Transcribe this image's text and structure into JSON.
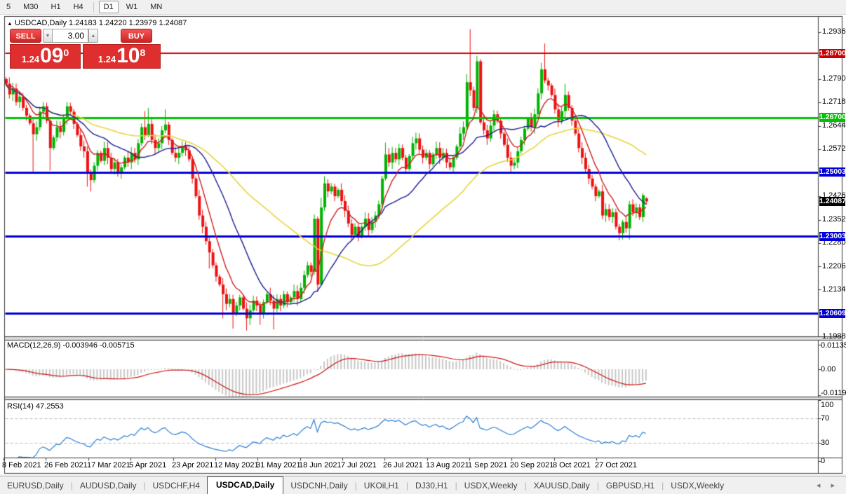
{
  "toolbar": {
    "timeframes": [
      "5",
      "M30",
      "H1",
      "H4",
      "D1",
      "W1",
      "MN"
    ],
    "active_timeframe": "D1",
    "separator_after": "H4"
  },
  "icons": {
    "collapse": "▲",
    "spin_down": "▼",
    "spin_up": "▲",
    "tab_prev": "◂",
    "tab_next": "▸"
  },
  "chart": {
    "title": "USDCAD,Daily 1.24183 1.24220 1.23979 1.24087",
    "symbol": "USDCAD",
    "period": "Daily"
  },
  "trade_panel": {
    "sell_label": "SELL",
    "buy_label": "BUY",
    "volume": "3.00",
    "sell_price_small": "1.24",
    "sell_price_big": "09",
    "sell_price_sup": "0",
    "buy_price_small": "1.24",
    "buy_price_big": "10",
    "buy_price_sup": "8"
  },
  "indicators": {
    "macd_label": "MACD(12,26,9) -0.003946 -0.005715",
    "rsi_label": "RSI(14) 47.2553"
  },
  "tabs": {
    "items": [
      "EURUSD,Daily",
      "AUDUSD,Daily",
      "USDCHF,H4",
      "USDCAD,Daily",
      "USDCNH,Daily",
      "UKOil,H1",
      "DJ30,H1",
      "USDX,Weekly",
      "XAUUSD,Daily",
      "GBPUSD,H1",
      "USDX,Weekly"
    ],
    "active_index": 3
  },
  "chart_data": {
    "type": "candlestick",
    "title": "USDCAD Daily",
    "ohlc_display": {
      "open": "1.24183",
      "high": "1.24220",
      "low": "1.23979",
      "close": "1.24087"
    },
    "y_axis_labels": [
      "1.29360",
      "1.28640",
      "1.27900",
      "1.27180",
      "1.26440",
      "1.25720",
      "1.24260",
      "1.23520",
      "1.22800",
      "1.22060",
      "1.21340",
      "1.19880"
    ],
    "h_lines": [
      {
        "price": 1.287,
        "label": "1.28700",
        "color": "#cc0000",
        "width": 2
      },
      {
        "price": 1.267,
        "label": "1.26700",
        "color": "#00c300",
        "width": 3
      },
      {
        "price": 1.25003,
        "label": "1.25003",
        "color": "#0000d6",
        "width": 3
      },
      {
        "price": 1.23003,
        "label": "1.23003",
        "color": "#0000d6",
        "width": 3
      },
      {
        "price": 1.20609,
        "label": "1.20609",
        "color": "#0000d6",
        "width": 3
      }
    ],
    "current_price": {
      "value": 1.24087,
      "label": "1.24087",
      "color": "#000000"
    },
    "x_axis_labels": [
      "8 Feb 2021",
      "26 Feb 2021",
      "17 Mar 2021",
      "5 Apr 2021",
      "23 Apr 2021",
      "12 May 2021",
      "31 May 2021",
      "18 Jun 2021",
      "7 Jul 2021",
      "26 Jul 2021",
      "13 Aug 2021",
      "1 Sep 2021",
      "20 Sep 2021",
      "8 Oct 2021",
      "27 Oct 2021"
    ],
    "macd": {
      "params": "12,26,9",
      "current_values": [
        -0.003946,
        -0.005715
      ],
      "axis_labels": [
        "0.01135",
        "0.00",
        "-0.01190"
      ],
      "range": [
        -0.0119,
        0.01135
      ]
    },
    "rsi": {
      "period": 14,
      "current_value": 47.2553,
      "axis_labels": [
        "100",
        "70",
        "30",
        "0"
      ],
      "levels": [
        70,
        30
      ],
      "range": [
        0,
        100
      ]
    },
    "candles": {
      "first_open": 1.279,
      "wick_base": 0.0016,
      "closes": [
        1.2775,
        1.2742,
        1.276,
        1.2718,
        1.2735,
        1.27,
        1.2676,
        1.2652,
        1.2618,
        1.264,
        1.2688,
        1.2705,
        1.266,
        1.2575,
        1.2608,
        1.264,
        1.2625,
        1.2665,
        1.2705,
        1.2688,
        1.265,
        1.2615,
        1.258,
        1.2565,
        1.2495,
        1.2475,
        1.252,
        1.256,
        1.2535,
        1.2575,
        1.2545,
        1.251,
        1.253,
        1.2495,
        1.2515,
        1.2545,
        1.253,
        1.256,
        1.254,
        1.259,
        1.264,
        1.2615,
        1.265,
        1.26,
        1.2575,
        1.259,
        1.263,
        1.2648,
        1.26,
        1.256,
        1.2545,
        1.256,
        1.258,
        1.2568,
        1.254,
        1.248,
        1.2425,
        1.2365,
        1.233,
        1.2285,
        1.225,
        1.221,
        1.2175,
        1.215,
        1.212,
        1.209,
        1.2105,
        1.206,
        1.2085,
        1.211,
        1.2075,
        1.2045,
        1.207,
        1.21,
        1.2085,
        1.206,
        1.2095,
        1.212,
        1.21,
        1.2075,
        1.2105,
        1.2085,
        1.212,
        1.2095,
        1.211,
        1.213,
        1.2105,
        1.214,
        1.218,
        1.221,
        1.219,
        1.2355,
        1.215,
        1.239,
        1.2465,
        1.244,
        1.2455,
        1.2425,
        1.2445,
        1.241,
        1.238,
        1.234,
        1.2305,
        1.233,
        1.23,
        1.233,
        1.2355,
        1.232,
        1.2345,
        1.2365,
        1.24,
        1.248,
        1.2555,
        1.253,
        1.256,
        1.254,
        1.2575,
        1.2545,
        1.251,
        1.255,
        1.259,
        1.2605,
        1.257,
        1.2545,
        1.256,
        1.2525,
        1.2555,
        1.2575,
        1.2545,
        1.256,
        1.253,
        1.2515,
        1.2545,
        1.258,
        1.262,
        1.264,
        1.278,
        1.2755,
        1.27,
        1.2845,
        1.2655,
        1.263,
        1.2605,
        1.2645,
        1.268,
        1.266,
        1.262,
        1.2585,
        1.2545,
        1.252,
        1.253,
        1.2565,
        1.26,
        1.2635,
        1.2665,
        1.264,
        1.268,
        1.2745,
        1.282,
        1.2785,
        1.277,
        1.274,
        1.2695,
        1.266,
        1.269,
        1.274,
        1.27,
        1.266,
        1.262,
        1.2575,
        1.2545,
        1.251,
        1.248,
        1.2455,
        1.2425,
        1.244,
        1.2365,
        1.2385,
        1.236,
        1.2375,
        1.233,
        1.231,
        1.2345,
        1.2325,
        1.24,
        1.2375,
        1.239,
        1.236,
        1.2428,
        1.24087
      ],
      "wick_overrides": [
        {
          "i": 8,
          "l": 1.2502
        },
        {
          "i": 13,
          "l": 1.2505
        },
        {
          "i": 24,
          "l": 1.2455
        },
        {
          "i": 25,
          "l": 1.244
        },
        {
          "i": 41,
          "h": 1.269
        },
        {
          "i": 42,
          "h": 1.27
        },
        {
          "i": 47,
          "h": 1.2695
        },
        {
          "i": 60,
          "l": 1.22
        },
        {
          "i": 64,
          "l": 1.2045
        },
        {
          "i": 67,
          "l": 1.2013
        },
        {
          "i": 71,
          "l": 1.2007
        },
        {
          "i": 75,
          "l": 1.2025
        },
        {
          "i": 79,
          "l": 1.201
        },
        {
          "i": 91,
          "h": 1.2368,
          "l": 1.218
        },
        {
          "i": 92,
          "h": 1.2362,
          "l": 1.2127
        },
        {
          "i": 93,
          "h": 1.242,
          "l": 1.215
        },
        {
          "i": 94,
          "h": 1.2487
        },
        {
          "i": 112,
          "h": 1.2592
        },
        {
          "i": 136,
          "h": 1.2805
        },
        {
          "i": 137,
          "h": 1.2945
        },
        {
          "i": 139,
          "h": 1.2862
        },
        {
          "i": 158,
          "h": 1.284
        },
        {
          "i": 159,
          "h": 1.29
        },
        {
          "i": 165,
          "h": 1.2775
        },
        {
          "i": 176,
          "l": 1.2353
        },
        {
          "i": 181,
          "l": 1.2288
        },
        {
          "i": 182,
          "l": 1.229
        },
        {
          "i": 184,
          "h": 1.241,
          "l": 1.229
        },
        {
          "i": 188,
          "h": 1.2435
        }
      ],
      "last_ohlc": [
        1.24183,
        1.2422,
        1.23979,
        1.24087
      ]
    },
    "moving_averages": [
      {
        "name": "MA fast",
        "period": 8,
        "type": "ema",
        "color": "#cf1f1f"
      },
      {
        "name": "MA mid",
        "period": 20,
        "type": "sma",
        "color": "#1c1c96"
      },
      {
        "name": "MA slow",
        "period": 50,
        "type": "sma",
        "color": "#e8d63c"
      }
    ],
    "colors": {
      "up": "#00b400",
      "down": "#ee1111",
      "macd_hist": "#c8c8c8",
      "macd_signal": "#cc1111",
      "rsi_line": "#2a7fd4",
      "rsi_levels": "#bbbbbb",
      "badge_black": "#000000"
    }
  }
}
